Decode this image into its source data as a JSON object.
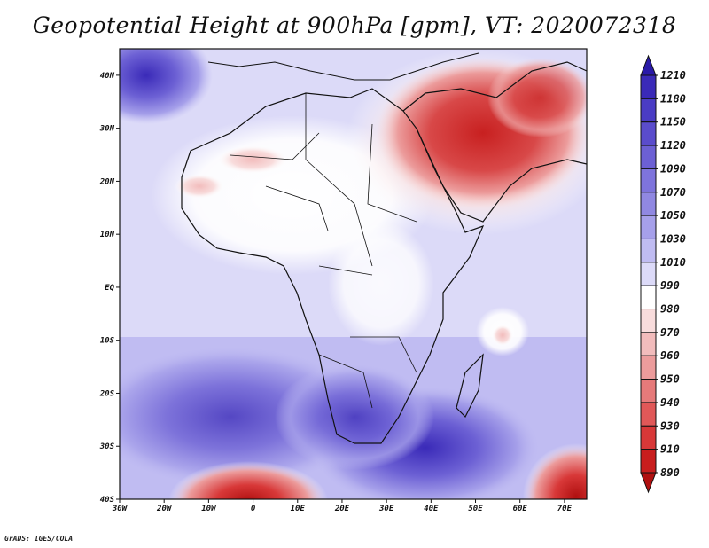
{
  "title": "Geopotential Height at 900hPa [gpm], VT: 2020072318",
  "credit": "GrADS: IGES/COLA",
  "map": {
    "lon_range": [
      -30,
      75
    ],
    "lat_range": [
      -40,
      45
    ],
    "x_ticks": [
      "30W",
      "20W",
      "10W",
      "0",
      "10E",
      "20E",
      "30E",
      "40E",
      "50E",
      "60E",
      "70E"
    ],
    "y_ticks": [
      "40N",
      "30N",
      "20N",
      "10N",
      "EQ",
      "10S",
      "20S",
      "30S",
      "40S"
    ]
  },
  "colorbar": {
    "levels": [
      "1210",
      "1180",
      "1150",
      "1120",
      "1090",
      "1070",
      "1050",
      "1030",
      "1010",
      "990",
      "980",
      "970",
      "960",
      "950",
      "940",
      "930",
      "910",
      "890"
    ],
    "colors": [
      "#2a1aa8",
      "#3a2ab8",
      "#4a3cc4",
      "#5a4ccc",
      "#6c60d4",
      "#7e74dc",
      "#9088e2",
      "#a6a0ea",
      "#c0bcf2",
      "#dcdaf8",
      "#ffffff",
      "#f8dcdc",
      "#f2bcbc",
      "#ec9c9c",
      "#e67a7a",
      "#e05858",
      "#d83838",
      "#c81e1e",
      "#b01010"
    ]
  }
}
